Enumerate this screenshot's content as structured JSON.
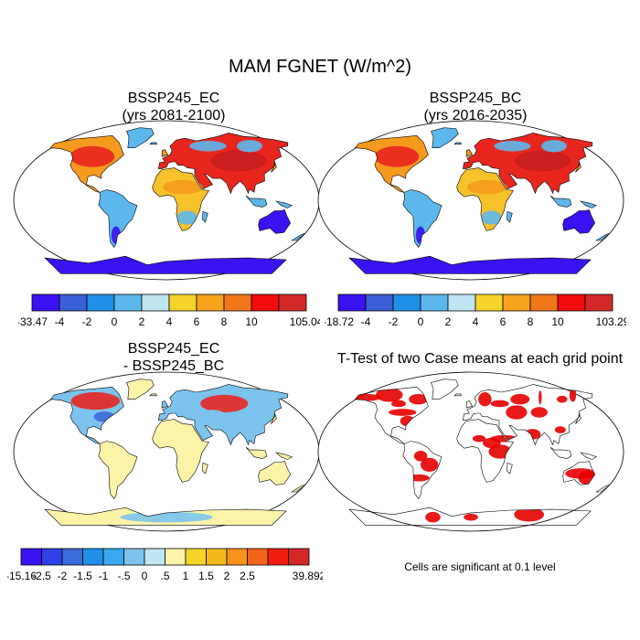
{
  "title": "MAM FGNET (W/m^2)",
  "panels": [
    {
      "id": "ec",
      "title_lines": [
        "BSSP245_EC",
        "(yrs 2081-2100)"
      ],
      "type": "field"
    },
    {
      "id": "bc",
      "title_lines": [
        "BSSP245_BC",
        "(yrs 2016-2035)"
      ],
      "type": "field"
    },
    {
      "id": "diff",
      "title_lines": [
        "BSSP245_EC",
        "- BSSP245_BC"
      ],
      "type": "difference"
    },
    {
      "id": "ttest",
      "title_lines": [
        "T-Test of two Case means at each grid point"
      ],
      "type": "significance"
    }
  ],
  "colorbars": [
    {
      "id": "ec",
      "colors": [
        "#3b12f2",
        "#3b5fd6",
        "#1f8fe8",
        "#5cb8ec",
        "#bfe6f2",
        "#f5d42a",
        "#f7a41c",
        "#f2761a",
        "#f20c0c",
        "#d42828"
      ],
      "labels": [
        "-33.47",
        "-4",
        "-2",
        "0",
        "2",
        "4",
        "6",
        "8",
        "10",
        "105.04"
      ]
    },
    {
      "id": "bc",
      "colors": [
        "#3b12f2",
        "#3b5fd6",
        "#1f8fe8",
        "#5cb8ec",
        "#bfe6f2",
        "#f5d42a",
        "#f7a41c",
        "#f2761a",
        "#f20c0c",
        "#d42828"
      ],
      "labels": [
        "-18.72",
        "-4",
        "-2",
        "0",
        "2",
        "4",
        "6",
        "8",
        "10",
        "103.29"
      ]
    },
    {
      "id": "diff",
      "colors": [
        "#3b12f2",
        "#2e41e6",
        "#3b6bd9",
        "#1f8fe8",
        "#3aa8f0",
        "#7cc4ee",
        "#bfe6f2",
        "#fbf4a8",
        "#f5d42a",
        "#f7b81c",
        "#f7921a",
        "#f2641a",
        "#f21c0c",
        "#d42828"
      ],
      "labels": [
        "-15.16",
        "-2.5",
        "-2",
        "-1.5",
        "-1",
        "-.5",
        "0",
        ".5",
        "1",
        "1.5",
        "2",
        "2.5",
        "39.892"
      ]
    }
  ],
  "note": "Cells are significant at 0.1 level",
  "map_colors": {
    "ocean": "#ffffff",
    "coast": "#000000",
    "significant": "#e60000",
    "north_high": "#e8261e",
    "north_warm": "#f59a1d",
    "subtropic_warm": "#f7c22a",
    "tropical_land": "#5cb8ec",
    "southern_land": "#1f8fe8",
    "antarctica": "#3b12f2",
    "diff_land": "#fbf4a8",
    "diff_blue": "#7cc4ee"
  }
}
